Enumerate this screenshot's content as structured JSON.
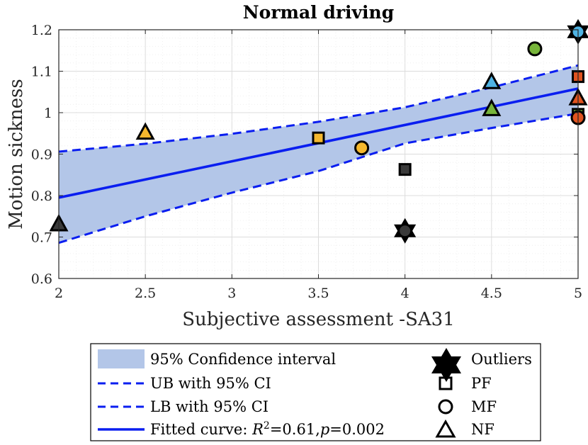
{
  "chart_data": {
    "type": "scatter",
    "title": "Normal driving",
    "xlabel": "Subjective assessment -SA31",
    "ylabel": "Motion sickness",
    "xlim": [
      2,
      5
    ],
    "ylim": [
      0.6,
      1.2
    ],
    "xticks": [
      2,
      2.5,
      3,
      3.5,
      4,
      4.5,
      5
    ],
    "xtick_labels": [
      "2",
      "2.5",
      "3",
      "3.5",
      "4",
      "4.5",
      "5"
    ],
    "yticks": [
      0.6,
      0.7,
      0.8,
      0.9,
      1.0,
      1.1,
      1.2
    ],
    "ytick_labels": [
      "0.6",
      "0.7",
      "0.8",
      "0.9",
      "1",
      "1.1",
      "1.2"
    ],
    "grid": true,
    "fit": {
      "x": [
        2,
        5
      ],
      "y": [
        0.795,
        1.058
      ]
    },
    "ci_upper": {
      "x": [
        2,
        2.5,
        3,
        3.5,
        4,
        4.5,
        5
      ],
      "y": [
        0.906,
        0.925,
        0.949,
        0.978,
        1.013,
        1.061,
        1.114
      ]
    },
    "ci_lower": {
      "x": [
        2,
        2.5,
        3,
        3.5,
        4,
        4.5,
        5
      ],
      "y": [
        0.686,
        0.75,
        0.807,
        0.859,
        0.926,
        0.963,
        0.998
      ]
    },
    "points": [
      {
        "x": 2.0,
        "y": 0.73,
        "marker": "triangle",
        "color": "#3a3a3a"
      },
      {
        "x": 2.5,
        "y": 0.951,
        "marker": "triangle",
        "color": "#f5b82e"
      },
      {
        "x": 3.5,
        "y": 0.939,
        "marker": "square",
        "color": "#f5b82e"
      },
      {
        "x": 3.75,
        "y": 0.915,
        "marker": "circle",
        "color": "#f5b82e"
      },
      {
        "x": 4.0,
        "y": 0.863,
        "marker": "square",
        "color": "#3a3a3a"
      },
      {
        "x": 4.0,
        "y": 0.715,
        "marker": "circle",
        "color": "#3a3a3a",
        "outlier": true
      },
      {
        "x": 4.5,
        "y": 1.073,
        "marker": "triangle",
        "color": "#4fb3e3"
      },
      {
        "x": 4.5,
        "y": 1.008,
        "marker": "triangle",
        "color": "#77b53a"
      },
      {
        "x": 4.75,
        "y": 1.154,
        "marker": "circle",
        "color": "#77b53a"
      },
      {
        "x": 5.0,
        "y": 1.195,
        "marker": "circle",
        "color": "#4fb3e3",
        "outlier": true
      },
      {
        "x": 5.0,
        "y": 1.087,
        "marker": "square",
        "color": "#e0531f"
      },
      {
        "x": 5.0,
        "y": 1.034,
        "marker": "triangle",
        "color": "#e0531f"
      },
      {
        "x": 5.0,
        "y": 0.996,
        "marker": "square",
        "color": "#77b53a"
      },
      {
        "x": 5.0,
        "y": 0.988,
        "marker": "circle",
        "color": "#e0531f"
      }
    ],
    "colors": {
      "ci_fill": "#b3c6e8",
      "line": "#0a1ef0",
      "axis": "#262626",
      "grid": "#d9d9d9"
    },
    "legend": {
      "entries": [
        {
          "label": "95% Confidence interval",
          "symbol": "patch"
        },
        {
          "label": "UB with 95% CI",
          "symbol": "dashed"
        },
        {
          "label": "LB with 95% CI",
          "symbol": "dashed"
        },
        {
          "label": "Fitted curve: ",
          "math": "R",
          "sup": "2",
          "tail": "=0.61,",
          "pvar": "p",
          "tail2": "=0.002",
          "symbol": "solid"
        }
      ],
      "markers": [
        {
          "label": "Outliers",
          "symbol": "hexagram"
        },
        {
          "label": "PF",
          "symbol": "square"
        },
        {
          "label": "MF",
          "symbol": "circle"
        },
        {
          "label": "NF",
          "symbol": "triangle"
        }
      ]
    }
  }
}
